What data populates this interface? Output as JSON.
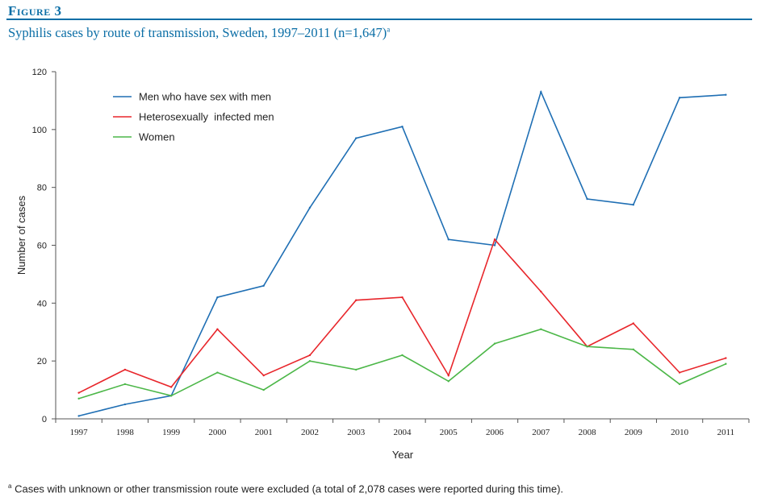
{
  "figure_label": "Figure 3",
  "subtitle": "Syphilis cases by route of transmission, Sweden, 1997–2011 (n=1,647)",
  "subtitle_marker": "a",
  "footnote_marker": "a",
  "footnote": "Cases with unknown or other transmission route were excluded (a total of 2,078 cases were reported during this time).",
  "colors": {
    "accent": "#0b6ea6"
  },
  "chart_data": {
    "type": "line",
    "xlabel": "Year",
    "ylabel": "Number of cases",
    "ylim": [
      0,
      120
    ],
    "yticks": [
      0,
      20,
      40,
      60,
      80,
      100,
      120
    ],
    "grid": false,
    "legend_position": "top-left",
    "categories": [
      "1997",
      "1998",
      "1999",
      "2000",
      "2001",
      "2002",
      "2003",
      "2004",
      "2005",
      "2006",
      "2007",
      "2008",
      "2009",
      "2010",
      "2011"
    ],
    "series": [
      {
        "name": "Men who have sex with men",
        "color": "#1f6fb4",
        "values": [
          1,
          5,
          8,
          42,
          46,
          73,
          97,
          101,
          62,
          60,
          113,
          76,
          74,
          111,
          112
        ]
      },
      {
        "name": "Heterosexually  infected men",
        "color": "#e8262b",
        "values": [
          9,
          17,
          11,
          31,
          15,
          22,
          41,
          42,
          15,
          62,
          44,
          25,
          33,
          16,
          21
        ]
      },
      {
        "name": "Women",
        "color": "#4cb748",
        "values": [
          7,
          12,
          8,
          16,
          10,
          20,
          17,
          22,
          13,
          26,
          31,
          25,
          24,
          12,
          19
        ]
      }
    ]
  }
}
